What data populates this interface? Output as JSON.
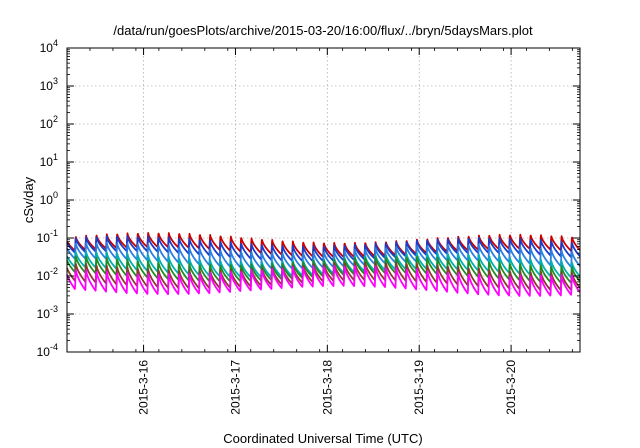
{
  "chart_data": {
    "type": "line",
    "title": "/data/run/goesPlots/archive/2015-03-20/16:00/flux/../bryn/5daysMars.plot",
    "xlabel": "Coordinated Universal Time (UTC)",
    "ylabel": "cSv/day",
    "y_scale": "log",
    "ylim": [
      0.0001,
      10000
    ],
    "y_ticks": [
      {
        "value": 0.0001,
        "base": "10",
        "exp": "-4"
      },
      {
        "value": 0.001,
        "base": "10",
        "exp": "-3"
      },
      {
        "value": 0.01,
        "base": "10",
        "exp": "-2"
      },
      {
        "value": 0.1,
        "base": "10",
        "exp": "-1"
      },
      {
        "value": 1,
        "base": "10",
        "exp": "0"
      },
      {
        "value": 10,
        "base": "10",
        "exp": "1"
      },
      {
        "value": 100,
        "base": "10",
        "exp": "2"
      },
      {
        "value": 1000,
        "base": "10",
        "exp": "3"
      },
      {
        "value": 10000,
        "base": "10",
        "exp": "4"
      }
    ],
    "xlim": [
      "2015-03-15 04:00",
      "2015-03-20 18:00"
    ],
    "x_ticks": [
      "2015-3-16",
      "2015-3-17",
      "2015-3-18",
      "2015-3-19",
      "2015-3-20"
    ],
    "grid": true,
    "legend": "none",
    "periodic_pattern": {
      "cycle_hours": 2.7,
      "note": "sawtooth: sharp rise each cycle followed by decay"
    },
    "series": [
      {
        "color": "#cc0000",
        "peak": 0.11,
        "trough": 0.045
      },
      {
        "color": "#1a3cc8",
        "peak": 0.09,
        "trough": 0.035
      },
      {
        "color": "#2b7fe0",
        "peak": 0.06,
        "trough": 0.022
      },
      {
        "color": "#00b0b0",
        "peak": 0.035,
        "trough": 0.013
      },
      {
        "color": "#228b22",
        "peak": 0.028,
        "trough": 0.01
      },
      {
        "color": "#8b3a2a",
        "peak": 0.02,
        "trough": 0.0065
      },
      {
        "color": "#ff00ff",
        "peak": 0.016,
        "trough": 0.0045
      }
    ]
  }
}
